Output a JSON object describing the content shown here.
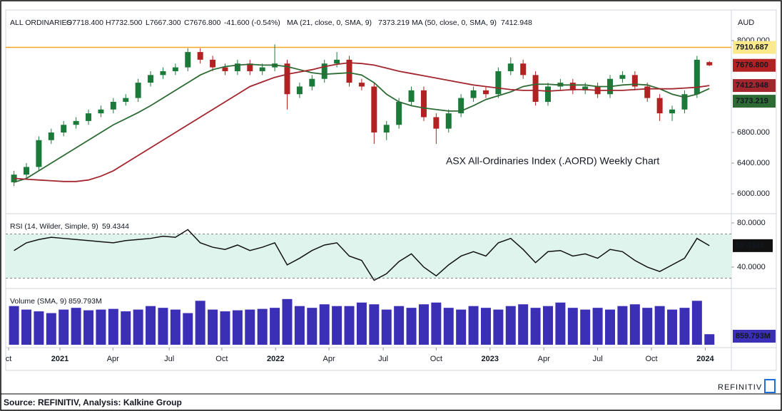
{
  "chart_data": {
    "type": "candlestick",
    "header": {
      "symbol": "ALL ORDINARIES",
      "open": "O7718.400",
      "high": "H7732.500",
      "low": "L7667.300",
      "close": "C7676.800",
      "change": "-41.600 (-0.54%)"
    },
    "currency": "AUD",
    "annotation": "ASX All-Ordinaries Index (.AORD) Weekly Chart",
    "x": [
      2,
      5,
      8,
      11,
      14,
      17,
      20,
      23,
      26,
      29,
      32,
      35,
      38,
      41,
      44,
      47,
      50,
      53,
      56,
      59,
      62,
      65,
      68,
      71,
      74,
      77,
      80,
      83,
      86,
      89,
      92,
      95,
      98,
      101,
      104,
      107,
      110,
      113,
      116,
      119,
      122,
      125,
      128,
      131,
      134,
      137,
      140,
      143,
      146,
      149,
      152,
      155,
      158,
      161,
      164,
      167,
      170
    ],
    "xlim": [
      0,
      175.3
    ],
    "xticks": [
      {
        "value": 0.7,
        "label": "ct"
      },
      {
        "value": 13.1,
        "label": "2021"
      },
      {
        "value": 25.9,
        "label": "Apr"
      },
      {
        "value": 39.5,
        "label": "Jul"
      },
      {
        "value": 52.2,
        "label": "Oct"
      },
      {
        "value": 65.2,
        "label": "2022"
      },
      {
        "value": 78.1,
        "label": "Apr"
      },
      {
        "value": 91.2,
        "label": "Jul"
      },
      {
        "value": 104,
        "label": "Oct"
      },
      {
        "value": 117,
        "label": "2023"
      },
      {
        "value": 130,
        "label": "Apr"
      },
      {
        "value": 143,
        "label": "Jul"
      },
      {
        "value": 156,
        "label": "Oct"
      },
      {
        "value": 169,
        "label": "2024"
      }
    ],
    "open": [
      6150,
      6250,
      6350,
      6700,
      6800,
      6900,
      6950,
      7050,
      7100,
      7200,
      7250,
      7450,
      7550,
      7600,
      7650,
      7850,
      7750,
      7650,
      7600,
      7700,
      7600,
      7650,
      7700,
      7300,
      7400,
      7500,
      7700,
      7750,
      7450,
      7400,
      6800,
      6900,
      7200,
      7350,
      7000,
      6850,
      7050,
      7250,
      7350,
      7300,
      7600,
      7700,
      7550,
      7200,
      7400,
      7450,
      7350,
      7400,
      7300,
      7500,
      7550,
      7400,
      7250,
      7050,
      7100,
      7300,
      7718.4
    ],
    "high": [
      6300,
      6400,
      6750,
      6850,
      6950,
      7000,
      7100,
      7150,
      7250,
      7300,
      7500,
      7600,
      7650,
      7700,
      7900,
      7900,
      7800,
      7700,
      7750,
      7750,
      7700,
      7950,
      7750,
      7450,
      7550,
      7750,
      7850,
      7800,
      7500,
      7450,
      6950,
      7250,
      7400,
      7400,
      7050,
      7100,
      7300,
      7400,
      7400,
      7650,
      7780,
      7750,
      7600,
      7450,
      7500,
      7500,
      7450,
      7450,
      7550,
      7600,
      7600,
      7450,
      7300,
      7150,
      7350,
      7800,
      7732.5
    ],
    "low": [
      6100,
      6200,
      6300,
      6650,
      6750,
      6850,
      6900,
      7000,
      7050,
      7150,
      7200,
      7400,
      7500,
      7550,
      7600,
      7700,
      7600,
      7550,
      7550,
      7550,
      7550,
      7600,
      7100,
      7250,
      7350,
      7450,
      7650,
      7400,
      7350,
      6650,
      6700,
      6850,
      7150,
      6950,
      6650,
      6800,
      7000,
      7200,
      7250,
      7250,
      7550,
      7500,
      7150,
      7150,
      7350,
      7300,
      7300,
      7250,
      7250,
      7450,
      7350,
      7200,
      6950,
      6950,
      7050,
      7250,
      7667.3
    ],
    "close": [
      6250,
      6350,
      6700,
      6800,
      6900,
      6950,
      7050,
      7100,
      7200,
      7250,
      7450,
      7550,
      7600,
      7650,
      7850,
      7750,
      7650,
      7600,
      7700,
      7600,
      7650,
      7700,
      7300,
      7400,
      7500,
      7700,
      7750,
      7450,
      7400,
      6800,
      6900,
      7200,
      7350,
      7000,
      6850,
      7050,
      7250,
      7350,
      7300,
      7600,
      7700,
      7550,
      7200,
      7400,
      7450,
      7350,
      7400,
      7300,
      7500,
      7550,
      7400,
      7250,
      7050,
      7100,
      7300,
      7750,
      7676.8
    ],
    "last_close_label": "7676.800",
    "up_color": "#1b7a3a",
    "down_color": "#b22222",
    "ylim": [
      5740,
      8390
    ],
    "yticks": [
      {
        "value": 6000,
        "label": "6000.000"
      },
      {
        "value": 6400,
        "label": "6400.000"
      },
      {
        "value": 6800,
        "label": "6800.000"
      },
      {
        "value": 8000,
        "label": "8000.000"
      }
    ],
    "resistance": 7910.687,
    "resistance_color": "#f5a623",
    "series": [
      {
        "name": "MA (21, close, 0, SMA, 9)",
        "color": "#2e6b34",
        "values": [
          6150,
          6200,
          6300,
          6400,
          6500,
          6600,
          6700,
          6800,
          6900,
          6980,
          7060,
          7150,
          7250,
          7350,
          7450,
          7550,
          7620,
          7660,
          7680,
          7690,
          7680,
          7680,
          7660,
          7620,
          7580,
          7560,
          7570,
          7580,
          7550,
          7450,
          7300,
          7200,
          7150,
          7120,
          7100,
          7080,
          7080,
          7150,
          7230,
          7280,
          7330,
          7400,
          7430,
          7430,
          7420,
          7420,
          7420,
          7400,
          7400,
          7420,
          7430,
          7420,
          7370,
          7300,
          7260,
          7300,
          7373.219
        ]
      },
      {
        "name": "MA (50, close, 0, SMA, 9)",
        "color": "#a3262e",
        "values": [
          6200,
          6190,
          6180,
          6170,
          6160,
          6160,
          6180,
          6230,
          6300,
          6400,
          6500,
          6600,
          6700,
          6800,
          6900,
          7000,
          7100,
          7200,
          7300,
          7400,
          7460,
          7520,
          7560,
          7590,
          7620,
          7660,
          7690,
          7710,
          7700,
          7680,
          7640,
          7600,
          7570,
          7540,
          7510,
          7480,
          7450,
          7420,
          7400,
          7380,
          7360,
          7350,
          7350,
          7340,
          7350,
          7360,
          7360,
          7350,
          7350,
          7350,
          7360,
          7370,
          7370,
          7370,
          7380,
          7390,
          7412.948
        ]
      }
    ],
    "rsi": {
      "name": "RSI (14, Wilder, Simple, 9)",
      "color": "#111111",
      "band_color": "#dff4ec",
      "values": [
        55,
        62,
        65,
        67,
        66,
        65,
        64,
        63,
        62,
        64,
        65,
        66,
        68,
        67,
        74,
        62,
        58,
        56,
        60,
        55,
        58,
        62,
        42,
        48,
        55,
        60,
        62,
        50,
        46,
        28,
        34,
        45,
        52,
        40,
        32,
        42,
        50,
        54,
        50,
        62,
        66,
        56,
        44,
        54,
        55,
        50,
        52,
        48,
        56,
        54,
        46,
        40,
        36,
        42,
        48,
        66,
        59.4344
      ],
      "ylim": [
        20.6,
        88.4
      ],
      "yticks": [
        {
          "value": 80,
          "label": "80.0000"
        },
        {
          "value": 40,
          "label": "40.0000"
        }
      ],
      "bands": [
        30,
        70
      ]
    },
    "volume": {
      "name": "Volume (SMA, 9)",
      "sma": "859.793M",
      "color": "#3b2fb5",
      "values": [
        1100,
        1000,
        950,
        900,
        1000,
        1050,
        980,
        1000,
        1020,
        950,
        1000,
        1100,
        1050,
        1000,
        900,
        1250,
        1000,
        950,
        980,
        1000,
        1020,
        1050,
        1300,
        1100,
        1050,
        1150,
        1100,
        1100,
        1200,
        1150,
        1000,
        1100,
        1050,
        1150,
        1200,
        1050,
        1000,
        1100,
        1050,
        1000,
        1100,
        1150,
        1050,
        1100,
        1200,
        1050,
        1000,
        1050,
        1000,
        1100,
        1150,
        1050,
        1100,
        1000,
        1050,
        1250,
        300
      ],
      "ylim": [
        0,
        1600
      ]
    }
  },
  "footer": {
    "source": "Source: REFINITIV, Analysis: Kalkine Group",
    "brand": "REFINITIV"
  }
}
